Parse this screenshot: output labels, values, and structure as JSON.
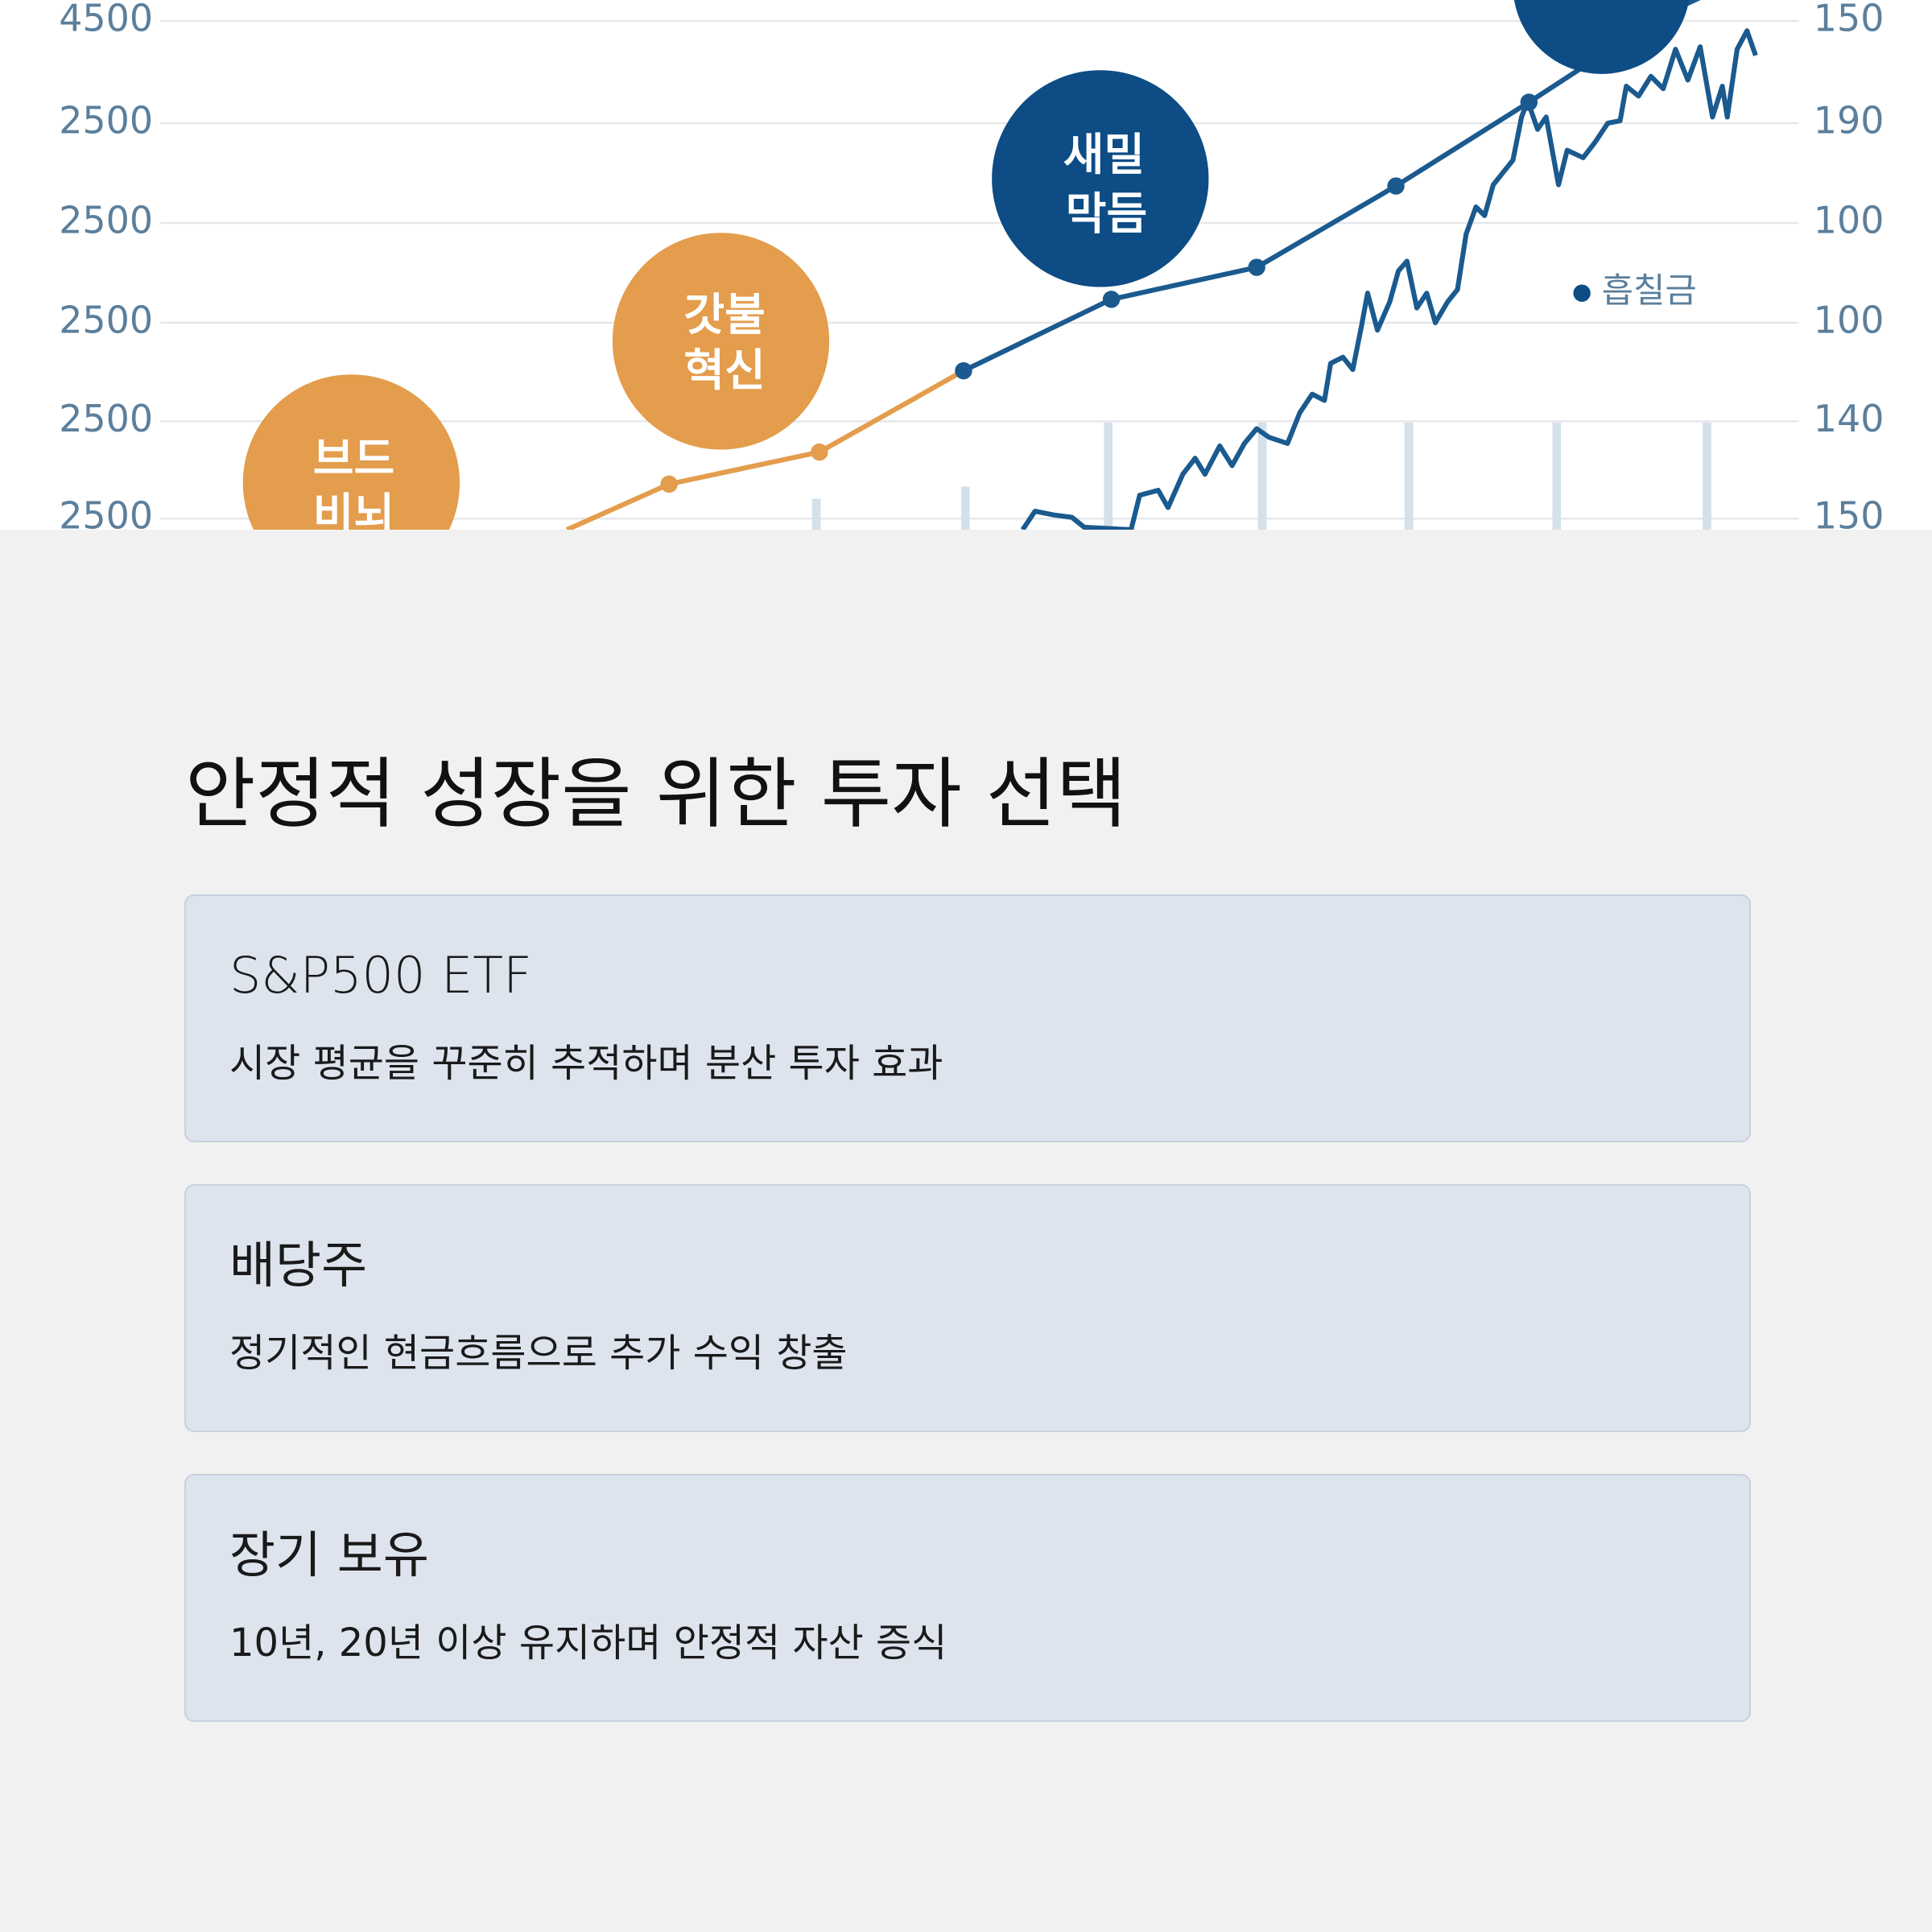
{
  "hero_image": {
    "left_axis_labels": [
      "4500",
      "2500",
      "2500",
      "2500",
      "2500",
      "2500"
    ],
    "right_axis_labels": [
      "150",
      "190",
      "100",
      "100",
      "140",
      "150"
    ],
    "bubbles": [
      {
        "lines": [
          "브드",
          "비뇌"
        ]
      },
      {
        "lines": [
          "갓불",
          "혁신"
        ]
      },
      {
        "lines": [
          "새밀",
          "막듬"
        ]
      }
    ],
    "legend": "흡칠금"
  },
  "section": {
    "title": "안정적 성장을 위한 투자 선택",
    "cards": [
      {
        "title": "S&P500 ETF",
        "description": "시장 평균을 꾸준히 추적하며 분산 투자 효과"
      },
      {
        "title": "배당주",
        "description": "정기적인 현금흐름으로 추가 수익 창출"
      },
      {
        "title": "장기 보유",
        "description": "10년, 20년 이상 유지하며 안정적 자산 증식"
      }
    ]
  }
}
